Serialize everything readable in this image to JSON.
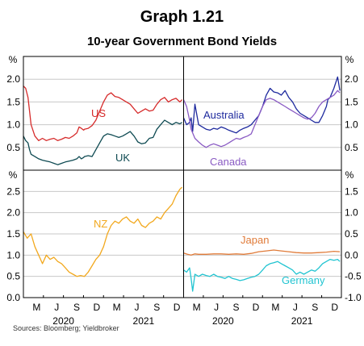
{
  "header": {
    "graph_number": "Graph 1.21",
    "title": "10-year Government Bond Yields",
    "source": "Sources: Bloomberg; Yieldbroker"
  },
  "axes": {
    "unit_label": "%",
    "month_ticks": [
      "M",
      "J",
      "S",
      "D",
      "M",
      "J",
      "S",
      "D"
    ],
    "years": [
      "2020",
      "2021"
    ]
  },
  "colors": {
    "US": "#d62b2b",
    "UK": "#0e4a52",
    "Australia": "#1e2a9e",
    "Canada": "#8a5bc4",
    "NZ": "#f2a81d",
    "Japan": "#e07b39",
    "Germany": "#21c4d1",
    "grid": "#c8c8c8",
    "axis": "#000000"
  },
  "chart_data": [
    {
      "type": "line",
      "panel": "top-left",
      "ylim": [
        0,
        2.5
      ],
      "yticks": [
        "0.5",
        "1.0",
        "1.5",
        "2.0"
      ],
      "x_labels": [
        "M",
        "J",
        "S",
        "D",
        "M",
        "J",
        "S",
        "D"
      ],
      "year_labels": [
        "2020",
        "2021"
      ],
      "series": [
        {
          "name": "US",
          "color": "#d62b2b",
          "x": [
            0,
            0.3,
            0.6,
            0.8,
            1,
            1.5,
            2,
            2.5,
            3,
            3.5,
            4,
            4.5,
            5,
            5.5,
            6,
            6.5,
            7,
            7.3,
            7.6,
            7.9,
            8,
            8.5,
            9,
            9.5,
            10,
            10.5,
            11,
            11.5,
            12,
            12.5,
            13,
            13.5,
            14,
            14.5,
            15,
            15.5,
            16,
            16.5,
            17,
            17.5,
            18,
            18.5,
            19,
            19.5,
            20,
            20.5,
            20.8
          ],
          "values": [
            1.85,
            1.8,
            1.6,
            1.3,
            1.0,
            0.75,
            0.65,
            0.7,
            0.65,
            0.68,
            0.7,
            0.65,
            0.68,
            0.72,
            0.7,
            0.75,
            0.82,
            0.95,
            0.92,
            0.88,
            0.9,
            0.92,
            0.98,
            1.1,
            1.3,
            1.5,
            1.65,
            1.7,
            1.62,
            1.6,
            1.55,
            1.5,
            1.45,
            1.35,
            1.25,
            1.3,
            1.35,
            1.3,
            1.32,
            1.45,
            1.55,
            1.6,
            1.5,
            1.55,
            1.58,
            1.5,
            1.55
          ]
        },
        {
          "name": "UK",
          "color": "#0e4a52",
          "x": [
            0,
            0.3,
            0.6,
            0.8,
            1,
            1.5,
            2,
            2.5,
            3,
            3.5,
            4,
            4.5,
            5,
            5.5,
            6,
            6.5,
            7,
            7.3,
            7.6,
            7.9,
            8,
            8.5,
            9,
            9.5,
            10,
            10.5,
            11,
            11.5,
            12,
            12.5,
            13,
            13.5,
            14,
            14.5,
            15,
            15.5,
            16,
            16.5,
            17,
            17.5,
            18,
            18.5,
            19,
            19.5,
            20,
            20.5,
            20.8
          ],
          "values": [
            0.75,
            0.65,
            0.6,
            0.45,
            0.35,
            0.3,
            0.25,
            0.22,
            0.2,
            0.18,
            0.15,
            0.12,
            0.15,
            0.18,
            0.2,
            0.22,
            0.25,
            0.3,
            0.25,
            0.28,
            0.3,
            0.32,
            0.3,
            0.45,
            0.6,
            0.75,
            0.8,
            0.78,
            0.75,
            0.72,
            0.75,
            0.8,
            0.85,
            0.75,
            0.62,
            0.58,
            0.6,
            0.7,
            0.72,
            0.9,
            1.0,
            1.1,
            1.05,
            1.0,
            1.05,
            1.02,
            1.05
          ]
        }
      ]
    },
    {
      "type": "line",
      "panel": "top-right",
      "ylim": [
        0,
        2.5
      ],
      "yticks": [
        "0.5",
        "1.0",
        "1.5",
        "2.0"
      ],
      "x_labels": [
        "M",
        "J",
        "S",
        "D",
        "M",
        "J",
        "S",
        "D"
      ],
      "year_labels": [
        "2020",
        "2021"
      ],
      "series": [
        {
          "name": "Australia",
          "color": "#1e2a9e",
          "x": [
            0,
            0.4,
            0.8,
            1,
            1.2,
            1.5,
            2,
            2.5,
            3,
            3.5,
            4,
            4.5,
            5,
            5.5,
            6,
            6.5,
            7,
            7.5,
            8,
            8.5,
            9,
            9.5,
            10,
            10.5,
            11,
            11.5,
            12,
            12.5,
            13,
            13.5,
            14,
            14.5,
            15,
            15.5,
            16,
            16.5,
            17,
            17.5,
            18,
            18.5,
            19,
            19.2,
            19.5,
            20,
            20.5,
            20.8
          ],
          "values": [
            1.15,
            1.0,
            1.05,
            1.15,
            0.85,
            1.45,
            1.0,
            0.95,
            0.9,
            0.88,
            0.92,
            0.9,
            0.95,
            0.92,
            0.88,
            0.85,
            0.82,
            0.88,
            0.92,
            0.95,
            1.0,
            1.1,
            1.2,
            1.4,
            1.65,
            1.8,
            1.72,
            1.7,
            1.65,
            1.75,
            1.6,
            1.5,
            1.35,
            1.25,
            1.2,
            1.15,
            1.1,
            1.05,
            1.05,
            1.2,
            1.4,
            1.55,
            1.6,
            1.8,
            2.05,
            1.75
          ]
        },
        {
          "name": "Canada",
          "color": "#8a5bc4",
          "x": [
            0,
            0.4,
            0.8,
            1,
            1.5,
            2,
            2.5,
            3,
            3.5,
            4,
            4.5,
            5,
            5.5,
            6,
            6.5,
            7,
            7.5,
            8,
            8.5,
            9,
            9.5,
            10,
            10.5,
            11,
            11.5,
            12,
            12.5,
            13,
            13.5,
            14,
            14.5,
            15,
            15.5,
            16,
            16.5,
            17,
            17.5,
            18,
            18.5,
            19,
            19.5,
            20,
            20.5,
            20.8
          ],
          "values": [
            1.55,
            1.4,
            1.1,
            0.9,
            0.7,
            0.62,
            0.55,
            0.5,
            0.55,
            0.58,
            0.55,
            0.52,
            0.55,
            0.6,
            0.65,
            0.7,
            0.68,
            0.72,
            0.75,
            0.8,
            1.0,
            1.2,
            1.4,
            1.55,
            1.58,
            1.55,
            1.5,
            1.45,
            1.4,
            1.35,
            1.3,
            1.25,
            1.2,
            1.15,
            1.12,
            1.15,
            1.25,
            1.4,
            1.5,
            1.55,
            1.6,
            1.65,
            1.75,
            1.7
          ]
        }
      ]
    },
    {
      "type": "line",
      "panel": "bottom-left",
      "ylim": [
        0,
        3.0
      ],
      "yticks": [
        "0.0",
        "0.5",
        "1.0",
        "1.5",
        "2.0",
        "2.5"
      ],
      "x_labels": [
        "M",
        "J",
        "S",
        "D",
        "M",
        "J",
        "S",
        "D"
      ],
      "year_labels": [
        "2020",
        "2021"
      ],
      "series": [
        {
          "name": "NZ",
          "color": "#f2a81d",
          "x": [
            0,
            0.5,
            1,
            1.5,
            2,
            2.5,
            3,
            3.5,
            4,
            4.5,
            5,
            5.5,
            6,
            6.5,
            7,
            7.5,
            8,
            8.5,
            9,
            9.5,
            10,
            10.5,
            11,
            11.5,
            12,
            12.5,
            13,
            13.5,
            14,
            14.5,
            15,
            15.5,
            16,
            16.5,
            17,
            17.5,
            18,
            18.5,
            19,
            19.5,
            20,
            20.5,
            20.8
          ],
          "values": [
            1.55,
            1.4,
            1.5,
            1.2,
            1.0,
            0.8,
            1.0,
            0.9,
            0.95,
            0.85,
            0.8,
            0.7,
            0.6,
            0.55,
            0.5,
            0.52,
            0.5,
            0.6,
            0.75,
            0.9,
            1.0,
            1.2,
            1.5,
            1.7,
            1.8,
            1.75,
            1.85,
            1.9,
            1.8,
            1.75,
            1.85,
            1.7,
            1.65,
            1.75,
            1.8,
            1.9,
            1.85,
            2.0,
            2.1,
            2.2,
            2.4,
            2.55,
            2.6
          ]
        }
      ]
    },
    {
      "type": "line",
      "panel": "bottom-right",
      "ylim": [
        -1.0,
        2.0
      ],
      "yticks": [
        "-1.0",
        "-0.5",
        "0.0",
        "0.5",
        "1.0",
        "1.5"
      ],
      "x_labels": [
        "M",
        "J",
        "S",
        "D",
        "M",
        "J",
        "S",
        "D"
      ],
      "year_labels": [
        "2020",
        "2021"
      ],
      "series": [
        {
          "name": "Japan",
          "color": "#e07b39",
          "x": [
            0,
            0.5,
            1,
            1.5,
            2,
            3,
            4,
            5,
            6,
            7,
            8,
            9,
            10,
            11,
            12,
            13,
            14,
            15,
            16,
            17,
            18,
            19,
            20,
            20.8
          ],
          "values": [
            0.05,
            0.02,
            0.0,
            0.03,
            0.02,
            0.02,
            0.03,
            0.03,
            0.02,
            0.03,
            0.02,
            0.04,
            0.08,
            0.1,
            0.12,
            0.1,
            0.08,
            0.06,
            0.05,
            0.05,
            0.06,
            0.07,
            0.09,
            0.08
          ]
        },
        {
          "name": "Germany",
          "color": "#21c4d1",
          "x": [
            0,
            0.4,
            0.8,
            1,
            1.2,
            1.5,
            2,
            2.5,
            3,
            3.5,
            4,
            4.5,
            5,
            5.5,
            6,
            6.5,
            7,
            7.5,
            8,
            8.5,
            9,
            9.5,
            10,
            10.5,
            11,
            11.5,
            12,
            12.5,
            13,
            13.5,
            14,
            14.5,
            15,
            15.5,
            16,
            16.5,
            17,
            17.5,
            18,
            18.5,
            19,
            19.5,
            20,
            20.5,
            20.8
          ],
          "values": [
            -0.35,
            -0.4,
            -0.3,
            -0.55,
            -0.85,
            -0.45,
            -0.5,
            -0.45,
            -0.48,
            -0.5,
            -0.45,
            -0.5,
            -0.52,
            -0.55,
            -0.5,
            -0.55,
            -0.57,
            -0.6,
            -0.58,
            -0.55,
            -0.52,
            -0.5,
            -0.45,
            -0.35,
            -0.25,
            -0.2,
            -0.18,
            -0.15,
            -0.2,
            -0.25,
            -0.3,
            -0.35,
            -0.45,
            -0.4,
            -0.45,
            -0.4,
            -0.35,
            -0.38,
            -0.3,
            -0.2,
            -0.15,
            -0.1,
            -0.12,
            -0.1,
            -0.15
          ]
        }
      ]
    }
  ]
}
